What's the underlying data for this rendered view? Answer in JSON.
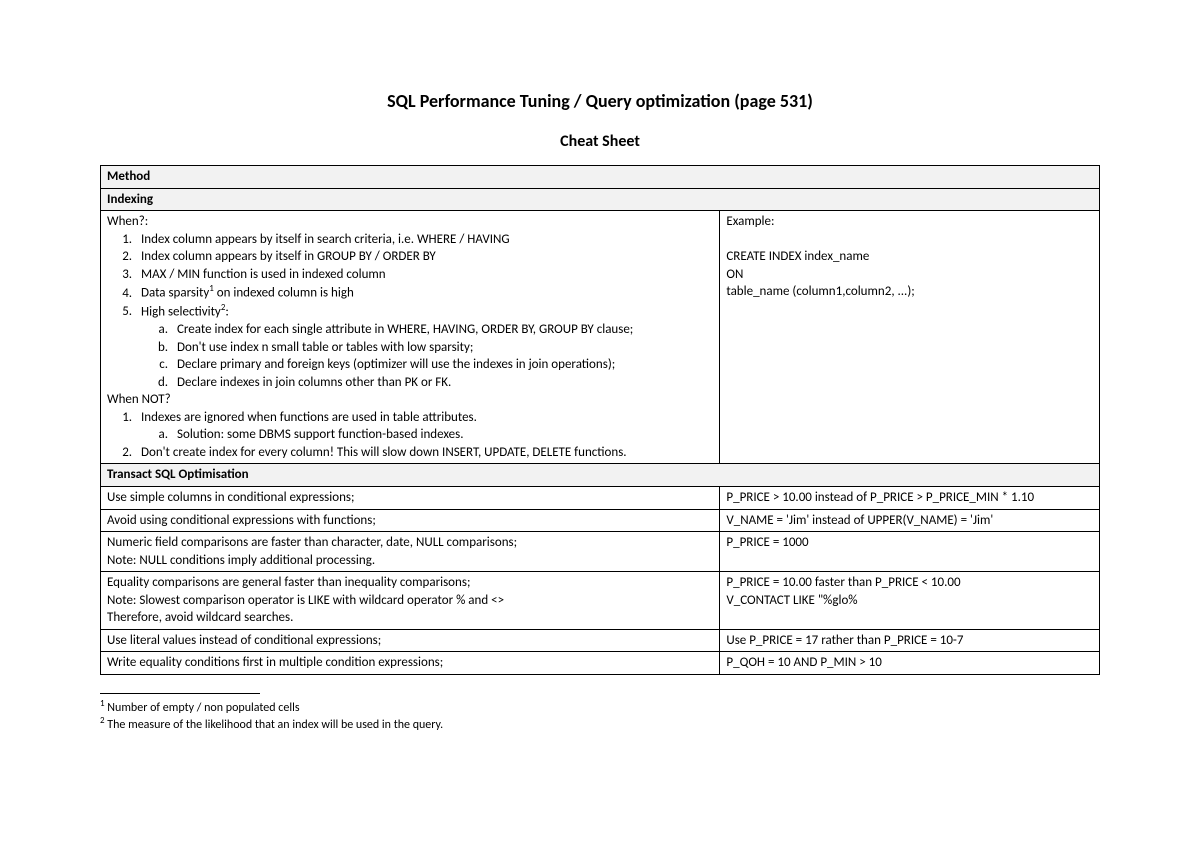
{
  "title": "SQL Performance Tuning / Query optimization (page 531)",
  "subtitle": "Cheat Sheet",
  "headers": {
    "method": "Method",
    "indexing": "Indexing",
    "tsql": "Transact SQL Optimisation"
  },
  "indexing": {
    "when_label": "When?:",
    "example_label": "Example:",
    "items": {
      "i1": "Index column appears by itself in search criteria, i.e. WHERE / HAVING",
      "i2": "Index column appears by itself in GROUP BY / ORDER BY",
      "i3": "MAX / MIN function is used in indexed column",
      "i4_pre": "Data sparsity",
      "i4_post": " on indexed column is high",
      "i5_pre": "High selectivity",
      "i5_post": ":",
      "a": "Create index for each single attribute in WHERE, HAVING, ORDER BY, GROUP BY clause;",
      "b": "Don't use index n small table or tables with low sparsity;",
      "c": "Declare primary and foreign keys (optimizer will use the indexes in join operations);",
      "d": "Declare indexes in join columns other than PK or FK."
    },
    "whennot_label": "When NOT?",
    "not": {
      "n1": "Indexes are ignored when functions are used in table attributes.",
      "n1a": "Solution: some DBMS support function-based indexes.",
      "n2": "Don't create index for every column! This will slow down INSERT, UPDATE, DELETE functions."
    },
    "example": {
      "l1": "CREATE INDEX index_name",
      "l2": "ON",
      "l3": "table_name (column1,column2, ...);"
    }
  },
  "tsql": {
    "r1l": "Use simple columns in conditional expressions;",
    "r1r": "P_PRICE > 10.00 instead of P_PRICE > P_PRICE_MIN * 1.10",
    "r2l": "Avoid using conditional expressions with functions;",
    "r2r": "V_NAME = 'Jim' instead of UPPER(V_NAME) = 'Jim'",
    "r3l1": "Numeric field comparisons are faster than character, date, NULL comparisons;",
    "r3l2": "Note: NULL conditions imply additional processing.",
    "r3r": "P_PRICE = 1000",
    "r4l1": "Equality comparisons are general faster than inequality comparisons;",
    "r4l2": "Note: Slowest comparison operator is LIKE with wildcard operator % and <>",
    "r4l3": "Therefore, avoid wildcard searches.",
    "r4r1": "P_PRICE = 10.00 faster than P_PRICE < 10.00",
    "r4r2": "V_CONTACT LIKE \"%glo%",
    "r5l": "Use literal values instead of conditional expressions;",
    "r5r": "Use P_PRICE = 17 rather than P_PRICE = 10-7",
    "r6l": "Write equality conditions first in multiple condition expressions;",
    "r6r": "P_QOH = 10 AND P_MIN > 10"
  },
  "footnotes": {
    "f1": " Number of empty / non populated cells",
    "f2": " The measure of the likelihood that an index will be used in the query."
  },
  "sup": {
    "one": "1",
    "two": "2"
  }
}
